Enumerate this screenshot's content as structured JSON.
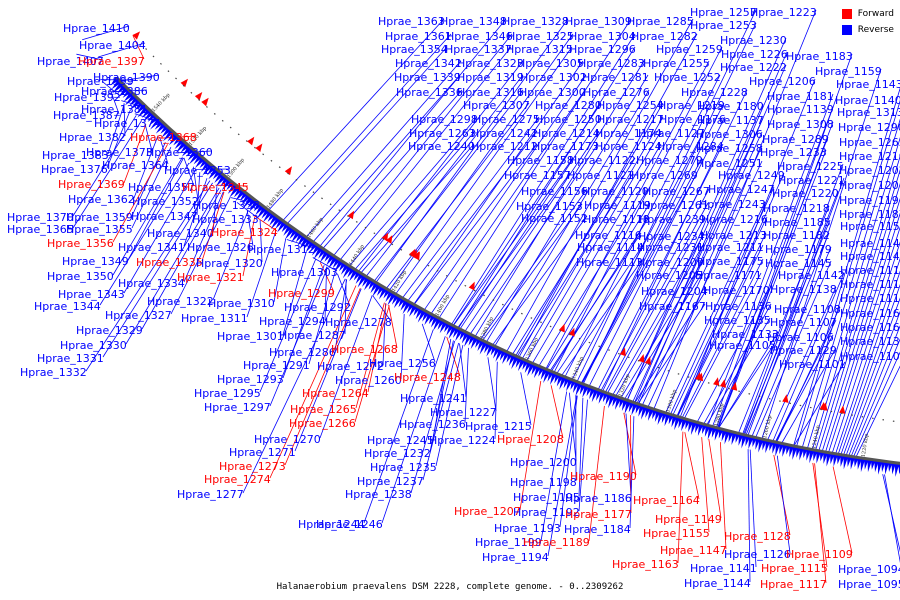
{
  "caption": "Halanaerobium praevalens DSM 2228, complete genome. - 0..2309262",
  "legend": [
    {
      "label": "Forward",
      "color": "#ff0000"
    },
    {
      "label": "Reverse",
      "color": "#0000ff"
    }
  ],
  "colors": {
    "forward": "#ff0000",
    "reverse": "#0000ff",
    "backbone": "#555555",
    "tick_text": "#222222"
  },
  "tick_labels": [
    "1540 kbp",
    "1520 kbp",
    "1500 kbp",
    "1480 kbp",
    "1460 kbp",
    "1440 kbp",
    "1420 kbp",
    "1400 kbp",
    "1380 kbp",
    "1360 kbp",
    "1340 kbp",
    "1320 kbp",
    "1300 kbp",
    "1280 kbp",
    "1260 kbp",
    "1240 kbp",
    "1220 kbp"
  ],
  "genes": [
    {
      "label": "Hprae_1410",
      "strand": "reverse"
    },
    {
      "label": "Hprae_1404",
      "strand": "reverse"
    },
    {
      "label": "Hprae_1407",
      "strand": "reverse"
    },
    {
      "label": "Hprae_1397",
      "strand": "forward"
    },
    {
      "label": "Hprae_1399",
      "strand": "reverse"
    },
    {
      "label": "Hprae_1390",
      "strand": "reverse"
    },
    {
      "label": "Hprae_1392",
      "strand": "reverse"
    },
    {
      "label": "Hprae_1386",
      "strand": "reverse"
    },
    {
      "label": "Hprae_1387",
      "strand": "reverse"
    },
    {
      "label": "Hprae_1381",
      "strand": "reverse"
    },
    {
      "label": "Hprae_1374",
      "strand": "reverse"
    },
    {
      "label": "Hprae_1382",
      "strand": "reverse"
    },
    {
      "label": "Hprae_1368",
      "strand": "forward"
    },
    {
      "label": "Hprae_1383",
      "strand": "reverse"
    },
    {
      "label": "Hprae_1373",
      "strand": "reverse"
    },
    {
      "label": "Hprae_1360",
      "strand": "reverse"
    },
    {
      "label": "Hprae_1376",
      "strand": "reverse"
    },
    {
      "label": "Hprae_1364",
      "strand": "reverse"
    },
    {
      "label": "Hprae_1353",
      "strand": "reverse"
    },
    {
      "label": "Hprae_1369",
      "strand": "forward"
    },
    {
      "label": "Hprae_1357",
      "strand": "reverse"
    },
    {
      "label": "Hprae_1345",
      "strand": "forward"
    },
    {
      "label": "Hprae_1362",
      "strand": "reverse"
    },
    {
      "label": "Hprae_1352",
      "strand": "reverse"
    },
    {
      "label": "Hprae_1338",
      "strand": "reverse"
    },
    {
      "label": "Hprae_1370",
      "strand": "reverse"
    },
    {
      "label": "Hprae_1359",
      "strand": "reverse"
    },
    {
      "label": "Hprae_1347",
      "strand": "reverse"
    },
    {
      "label": "Hprae_1333",
      "strand": "reverse"
    },
    {
      "label": "Hprae_1365",
      "strand": "reverse"
    },
    {
      "label": "Hprae_1355",
      "strand": "reverse"
    },
    {
      "label": "Hprae_1340",
      "strand": "reverse"
    },
    {
      "label": "Hprae_1324",
      "strand": "forward"
    },
    {
      "label": "Hprae_1356",
      "strand": "forward"
    },
    {
      "label": "Hprae_1341",
      "strand": "reverse"
    },
    {
      "label": "Hprae_1326",
      "strand": "reverse"
    },
    {
      "label": "Hprae_1312",
      "strand": "reverse"
    },
    {
      "label": "Hprae_1349",
      "strand": "reverse"
    },
    {
      "label": "Hprae_1335",
      "strand": "forward"
    },
    {
      "label": "Hprae_1320",
      "strand": "reverse"
    },
    {
      "label": "Hprae_1350",
      "strand": "reverse"
    },
    {
      "label": "Hprae_1321",
      "strand": "forward"
    },
    {
      "label": "Hprae_1303",
      "strand": "reverse"
    },
    {
      "label": "Hprae_1334",
      "strand": "reverse"
    },
    {
      "label": "Hprae_1343",
      "strand": "reverse"
    },
    {
      "label": "Hprae_1299",
      "strand": "forward"
    },
    {
      "label": "Hprae_1344",
      "strand": "reverse"
    },
    {
      "label": "Hprae_1322",
      "strand": "reverse"
    },
    {
      "label": "Hprae_1310",
      "strand": "reverse"
    },
    {
      "label": "Hprae_1292",
      "strand": "reverse"
    },
    {
      "label": "Hprae_1327",
      "strand": "reverse"
    },
    {
      "label": "Hprae_1311",
      "strand": "reverse"
    },
    {
      "label": "Hprae_1294",
      "strand": "reverse"
    },
    {
      "label": "Hprae_1278",
      "strand": "reverse"
    },
    {
      "label": "Hprae_1329",
      "strand": "reverse"
    },
    {
      "label": "Hprae_1287",
      "strand": "reverse"
    },
    {
      "label": "Hprae_1301",
      "strand": "reverse"
    },
    {
      "label": "Hprae_1330",
      "strand": "reverse"
    },
    {
      "label": "Hprae_1286",
      "strand": "reverse"
    },
    {
      "label": "Hprae_1268",
      "strand": "forward"
    },
    {
      "label": "Hprae_1331",
      "strand": "reverse"
    },
    {
      "label": "Hprae_1291",
      "strand": "reverse"
    },
    {
      "label": "Hprae_1272",
      "strand": "reverse"
    },
    {
      "label": "Hprae_1256",
      "strand": "reverse"
    },
    {
      "label": "Hprae_1332",
      "strand": "reverse"
    },
    {
      "label": "Hprae_1293",
      "strand": "reverse"
    },
    {
      "label": "Hprae_1260",
      "strand": "reverse"
    },
    {
      "label": "Hprae_1248",
      "strand": "forward"
    },
    {
      "label": "Hprae_1295",
      "strand": "reverse"
    },
    {
      "label": "Hprae_1264",
      "strand": "forward"
    },
    {
      "label": "Hprae_1241",
      "strand": "reverse"
    },
    {
      "label": "Hprae_1297",
      "strand": "reverse"
    },
    {
      "label": "Hprae_1265",
      "strand": "forward"
    },
    {
      "label": "Hprae_1227",
      "strand": "reverse"
    },
    {
      "label": "Hprae_1266",
      "strand": "forward"
    },
    {
      "label": "Hprae_1236",
      "strand": "reverse"
    },
    {
      "label": "Hprae_1215",
      "strand": "reverse"
    },
    {
      "label": "Hprae_1270",
      "strand": "reverse"
    },
    {
      "label": "Hprae_1245",
      "strand": "reverse"
    },
    {
      "label": "Hprae_1224",
      "strand": "reverse"
    },
    {
      "label": "Hprae_1208",
      "strand": "forward"
    },
    {
      "label": "Hprae_1271",
      "strand": "reverse"
    },
    {
      "label": "Hprae_1232",
      "strand": "reverse"
    },
    {
      "label": "Hprae_1273",
      "strand": "forward"
    },
    {
      "label": "Hprae_1235",
      "strand": "reverse"
    },
    {
      "label": "Hprae_1200",
      "strand": "reverse"
    },
    {
      "label": "Hprae_1274",
      "strand": "forward"
    },
    {
      "label": "Hprae_1237",
      "strand": "reverse"
    },
    {
      "label": "Hprae_1198",
      "strand": "reverse"
    },
    {
      "label": "Hprae_1190",
      "strand": "forward"
    },
    {
      "label": "Hprae_1277",
      "strand": "reverse"
    },
    {
      "label": "Hprae_1238",
      "strand": "reverse"
    },
    {
      "label": "Hprae_1195",
      "strand": "reverse"
    },
    {
      "label": "Hprae_1186",
      "strand": "reverse"
    },
    {
      "label": "Hprae_1164",
      "strand": "forward"
    },
    {
      "label": "Hprae_1244",
      "strand": "reverse"
    },
    {
      "label": "Hprae_1207",
      "strand": "forward"
    },
    {
      "label": "Hprae_1192",
      "strand": "reverse"
    },
    {
      "label": "Hprae_1177",
      "strand": "forward"
    },
    {
      "label": "Hprae_1149",
      "strand": "forward"
    },
    {
      "label": "Hprae_1246",
      "strand": "reverse"
    },
    {
      "label": "Hprae_1193",
      "strand": "reverse"
    },
    {
      "label": "Hprae_1184",
      "strand": "reverse"
    },
    {
      "label": "Hprae_1155",
      "strand": "forward"
    },
    {
      "label": "Hprae_1199",
      "strand": "reverse"
    },
    {
      "label": "Hprae_1189",
      "strand": "forward"
    },
    {
      "label": "Hprae_1147",
      "strand": "forward"
    },
    {
      "label": "Hprae_1128",
      "strand": "forward"
    },
    {
      "label": "Hprae_1194",
      "strand": "reverse"
    },
    {
      "label": "Hprae_1163",
      "strand": "forward"
    },
    {
      "label": "Hprae_1126",
      "strand": "reverse"
    },
    {
      "label": "Hprae_1109",
      "strand": "forward"
    },
    {
      "label": "Hprae_1141",
      "strand": "reverse"
    },
    {
      "label": "Hprae_1115",
      "strand": "forward"
    },
    {
      "label": "Hprae_1094",
      "strand": "reverse"
    },
    {
      "label": "Hprae_1144",
      "strand": "reverse"
    },
    {
      "label": "Hprae_1117",
      "strand": "forward"
    },
    {
      "label": "Hprae_1095",
      "strand": "reverse"
    },
    {
      "label": "Hprae_1363",
      "strand": "reverse"
    },
    {
      "label": "Hprae_1348",
      "strand": "reverse"
    },
    {
      "label": "Hprae_1328",
      "strand": "reverse"
    },
    {
      "label": "Hprae_1309",
      "strand": "reverse"
    },
    {
      "label": "Hprae_1285",
      "strand": "reverse"
    },
    {
      "label": "Hprae_1257",
      "strand": "reverse"
    },
    {
      "label": "Hprae_1223",
      "strand": "reverse"
    },
    {
      "label": "Hprae_1253",
      "strand": "reverse"
    },
    {
      "label": "Hprae_1361",
      "strand": "reverse"
    },
    {
      "label": "Hprae_1346",
      "strand": "reverse"
    },
    {
      "label": "Hprae_1325",
      "strand": "reverse"
    },
    {
      "label": "Hprae_1304",
      "strand": "reverse"
    },
    {
      "label": "Hprae_1282",
      "strand": "reverse"
    },
    {
      "label": "Hprae_1230",
      "strand": "reverse"
    },
    {
      "label": "Hprae_1354",
      "strand": "reverse"
    },
    {
      "label": "Hprae_1337",
      "strand": "reverse"
    },
    {
      "label": "Hprae_1315",
      "strand": "reverse"
    },
    {
      "label": "Hprae_1296",
      "strand": "reverse"
    },
    {
      "label": "Hprae_1259",
      "strand": "reverse"
    },
    {
      "label": "Hprae_1226",
      "strand": "reverse"
    },
    {
      "label": "Hprae_1183",
      "strand": "reverse"
    },
    {
      "label": "Hprae_1342",
      "strand": "reverse"
    },
    {
      "label": "Hprae_1323",
      "strand": "reverse"
    },
    {
      "label": "Hprae_1305",
      "strand": "reverse"
    },
    {
      "label": "Hprae_1283",
      "strand": "reverse"
    },
    {
      "label": "Hprae_1255",
      "strand": "reverse"
    },
    {
      "label": "Hprae_1222",
      "strand": "reverse"
    },
    {
      "label": "Hprae_1159",
      "strand": "reverse"
    },
    {
      "label": "Hprae_1339",
      "strand": "reverse"
    },
    {
      "label": "Hprae_1319",
      "strand": "reverse"
    },
    {
      "label": "Hprae_1302",
      "strand": "reverse"
    },
    {
      "label": "Hprae_1281",
      "strand": "reverse"
    },
    {
      "label": "Hprae_1252",
      "strand": "reverse"
    },
    {
      "label": "Hprae_1206",
      "strand": "reverse"
    },
    {
      "label": "Hprae_1143",
      "strand": "reverse"
    },
    {
      "label": "Hprae_1336",
      "strand": "reverse"
    },
    {
      "label": "Hprae_1316",
      "strand": "reverse"
    },
    {
      "label": "Hprae_1300",
      "strand": "reverse"
    },
    {
      "label": "Hprae_1276",
      "strand": "reverse"
    },
    {
      "label": "Hprae_1228",
      "strand": "reverse"
    },
    {
      "label": "Hprae_1181",
      "strand": "reverse"
    },
    {
      "label": "Hprae_1140",
      "strand": "reverse"
    },
    {
      "label": "Hprae_1307",
      "strand": "reverse"
    },
    {
      "label": "Hprae_1280",
      "strand": "reverse"
    },
    {
      "label": "Hprae_1254",
      "strand": "reverse"
    },
    {
      "label": "Hprae_1219",
      "strand": "reverse"
    },
    {
      "label": "Hprae_1180",
      "strand": "reverse"
    },
    {
      "label": "Hprae_1139",
      "strand": "reverse"
    },
    {
      "label": "Hprae_1313",
      "strand": "reverse"
    },
    {
      "label": "Hprae_1298",
      "strand": "reverse"
    },
    {
      "label": "Hprae_1275",
      "strand": "reverse"
    },
    {
      "label": "Hprae_1250",
      "strand": "reverse"
    },
    {
      "label": "Hprae_1217",
      "strand": "reverse"
    },
    {
      "label": "Hprae_1176",
      "strand": "reverse"
    },
    {
      "label": "Hprae_1137",
      "strand": "reverse"
    },
    {
      "label": "Hprae_1308",
      "strand": "reverse"
    },
    {
      "label": "Hprae_1290",
      "strand": "reverse"
    },
    {
      "label": "Hprae_1263",
      "strand": "reverse"
    },
    {
      "label": "Hprae_1242",
      "strand": "reverse"
    },
    {
      "label": "Hprae_1214",
      "strand": "reverse"
    },
    {
      "label": "Hprae_1174",
      "strand": "reverse"
    },
    {
      "label": "Hprae_1127",
      "strand": "reverse"
    },
    {
      "label": "Hprae_1306",
      "strand": "reverse"
    },
    {
      "label": "Hprae_1289",
      "strand": "reverse"
    },
    {
      "label": "Hprae_1262",
      "strand": "reverse"
    },
    {
      "label": "Hprae_1240",
      "strand": "reverse"
    },
    {
      "label": "Hprae_1212",
      "strand": "reverse"
    },
    {
      "label": "Hprae_1173",
      "strand": "reverse"
    },
    {
      "label": "Hprae_1124",
      "strand": "reverse"
    },
    {
      "label": "Hprae_1284",
      "strand": "reverse"
    },
    {
      "label": "Hprae_1258",
      "strand": "reverse"
    },
    {
      "label": "Hprae_1233",
      "strand": "reverse"
    },
    {
      "label": "Hprae_1210",
      "strand": "reverse"
    },
    {
      "label": "Hprae_1158",
      "strand": "reverse"
    },
    {
      "label": "Hprae_1122",
      "strand": "reverse"
    },
    {
      "label": "Hprae_1279",
      "strand": "reverse"
    },
    {
      "label": "Hprae_1251",
      "strand": "reverse"
    },
    {
      "label": "Hprae_1225",
      "strand": "reverse"
    },
    {
      "label": "Hprae_1202",
      "strand": "reverse"
    },
    {
      "label": "Hprae_1157",
      "strand": "reverse"
    },
    {
      "label": "Hprae_1121",
      "strand": "reverse"
    },
    {
      "label": "Hprae_1269",
      "strand": "reverse"
    },
    {
      "label": "Hprae_1249",
      "strand": "reverse"
    },
    {
      "label": "Hprae_1221",
      "strand": "reverse"
    },
    {
      "label": "Hprae_1201",
      "strand": "reverse"
    },
    {
      "label": "Hprae_1156",
      "strand": "reverse"
    },
    {
      "label": "Hprae_1120",
      "strand": "reverse"
    },
    {
      "label": "Hprae_1267",
      "strand": "reverse"
    },
    {
      "label": "Hprae_1247",
      "strand": "reverse"
    },
    {
      "label": "Hprae_1220",
      "strand": "reverse"
    },
    {
      "label": "Hprae_1191",
      "strand": "reverse"
    },
    {
      "label": "Hprae_1153",
      "strand": "reverse"
    },
    {
      "label": "Hprae_1119",
      "strand": "reverse"
    },
    {
      "label": "Hprae_1261",
      "strand": "reverse"
    },
    {
      "label": "Hprae_1243",
      "strand": "reverse"
    },
    {
      "label": "Hprae_1218",
      "strand": "reverse"
    },
    {
      "label": "Hprae_1187",
      "strand": "reverse"
    },
    {
      "label": "Hprae_1152",
      "strand": "reverse"
    },
    {
      "label": "Hprae_1118",
      "strand": "reverse"
    },
    {
      "label": "Hprae_1239",
      "strand": "reverse"
    },
    {
      "label": "Hprae_1216",
      "strand": "reverse"
    },
    {
      "label": "Hprae_1185",
      "strand": "reverse"
    },
    {
      "label": "Hprae_1151",
      "strand": "reverse"
    },
    {
      "label": "Hprae_1116",
      "strand": "reverse"
    },
    {
      "label": "Hprae_1234",
      "strand": "reverse"
    },
    {
      "label": "Hprae_1213",
      "strand": "reverse"
    },
    {
      "label": "Hprae_1182",
      "strand": "reverse"
    },
    {
      "label": "Hprae_1148",
      "strand": "reverse"
    },
    {
      "label": "Hprae_1114",
      "strand": "reverse"
    },
    {
      "label": "Hprae_1231",
      "strand": "reverse"
    },
    {
      "label": "Hprae_1211",
      "strand": "reverse"
    },
    {
      "label": "Hprae_1179",
      "strand": "reverse"
    },
    {
      "label": "Hprae_1146",
      "strand": "reverse"
    },
    {
      "label": "Hprae_1113",
      "strand": "reverse"
    },
    {
      "label": "Hprae_1209",
      "strand": "reverse"
    },
    {
      "label": "Hprae_1175",
      "strand": "reverse"
    },
    {
      "label": "Hprae_1145",
      "strand": "reverse"
    },
    {
      "label": "Hprae_1112",
      "strand": "reverse"
    },
    {
      "label": "Hprae_1205",
      "strand": "reverse"
    },
    {
      "label": "Hprae_1171",
      "strand": "reverse"
    },
    {
      "label": "Hprae_1142",
      "strand": "reverse"
    },
    {
      "label": "Hprae_1111",
      "strand": "reverse"
    },
    {
      "label": "Hprae_1204",
      "strand": "reverse"
    },
    {
      "label": "Hprae_1170",
      "strand": "reverse"
    },
    {
      "label": "Hprae_1138",
      "strand": "reverse"
    },
    {
      "label": "Hprae_1110",
      "strand": "reverse"
    },
    {
      "label": "Hprae_1167",
      "strand": "reverse"
    },
    {
      "label": "Hprae_1136",
      "strand": "reverse"
    },
    {
      "label": "Hprae_1108",
      "strand": "reverse"
    },
    {
      "label": "Hprae_1162",
      "strand": "reverse"
    },
    {
      "label": "Hprae_1135",
      "strand": "reverse"
    },
    {
      "label": "Hprae_1107",
      "strand": "reverse"
    },
    {
      "label": "Hprae_1160",
      "strand": "reverse"
    },
    {
      "label": "Hprae_1133",
      "strand": "reverse"
    },
    {
      "label": "Hprae_1106",
      "strand": "reverse"
    },
    {
      "label": "Hprae_1132",
      "strand": "reverse"
    },
    {
      "label": "Hprae_1105",
      "strand": "reverse"
    },
    {
      "label": "Hprae_1129",
      "strand": "reverse"
    },
    {
      "label": "Hprae_1104",
      "strand": "reverse"
    },
    {
      "label": "Hprae_1101",
      "strand": "reverse"
    }
  ]
}
